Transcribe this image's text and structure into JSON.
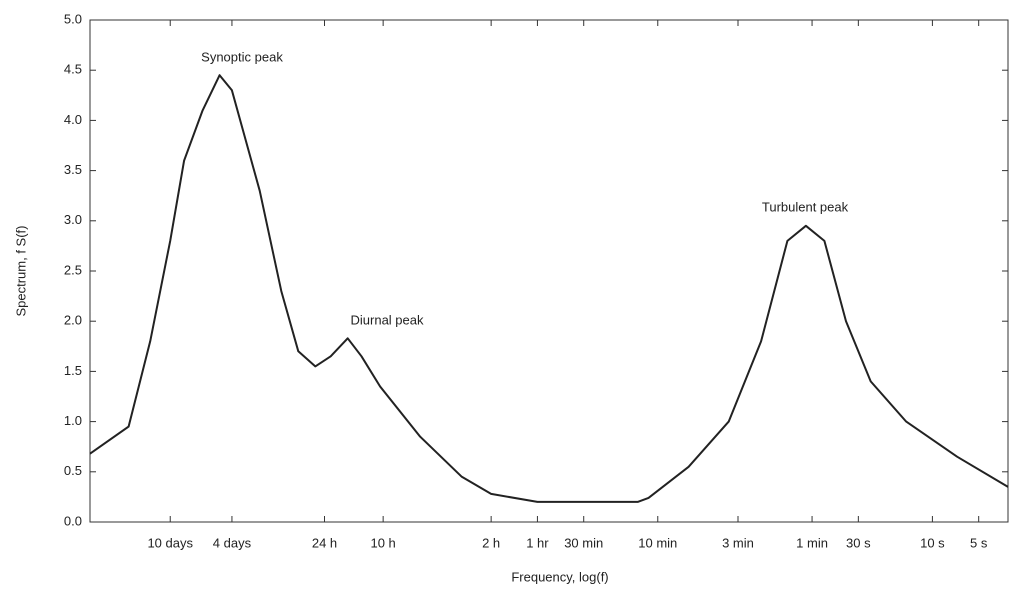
{
  "chart_data": {
    "type": "line",
    "x_label": "Frequency, log(f)",
    "y_label": "Spectrum, f S(f)",
    "annotations": [
      "Synoptic peak",
      "Diurnal peak",
      "Turbulent peak"
    ],
    "xlim": [
      -2.9,
      3.05
    ],
    "xticks": [
      {
        "value": -2.38,
        "label": "10 days"
      },
      {
        "value": -1.98,
        "label": "4 days"
      },
      {
        "value": -1.38,
        "label": "24 h"
      },
      {
        "value": -1.0,
        "label": "10 h"
      },
      {
        "value": -0.3,
        "label": "2 h"
      },
      {
        "value": 0,
        "label": "1 hr"
      },
      {
        "value": 0.3,
        "label": "30 min"
      },
      {
        "value": 0.78,
        "label": "10 min"
      },
      {
        "value": 1.3,
        "label": "3 min"
      },
      {
        "value": 1.78,
        "label": "1 min"
      },
      {
        "value": 2.08,
        "label": "30 s"
      },
      {
        "value": 2.56,
        "label": "10 s"
      },
      {
        "value": 2.86,
        "label": "5 s"
      }
    ],
    "ylim": [
      0,
      5
    ],
    "yticks": [
      {
        "value": 0,
        "label": "0.0"
      },
      {
        "value": 0.5,
        "label": "0.5"
      },
      {
        "value": 1,
        "label": "1.0"
      },
      {
        "value": 1.5,
        "label": "1.5"
      },
      {
        "value": 2,
        "label": "2.0"
      },
      {
        "value": 2.5,
        "label": "2.5"
      },
      {
        "value": 3,
        "label": "3.0"
      },
      {
        "value": 3.5,
        "label": "3.5"
      },
      {
        "value": 4,
        "label": "4.0"
      },
      {
        "value": 4.5,
        "label": "4.5"
      },
      {
        "value": 5,
        "label": "5.0"
      }
    ],
    "color": "#222222",
    "x": [
      -2.9,
      -2.65,
      -2.51,
      -2.38,
      -2.29,
      -2.17,
      -2.06,
      -1.98,
      -1.8,
      -1.66,
      -1.55,
      -1.44,
      -1.34,
      -1.23,
      -1.14,
      -1.02,
      -0.76,
      -0.49,
      -0.3,
      0,
      0.32,
      0.65,
      0.72,
      0.98,
      1.24,
      1.45,
      1.62,
      1.74,
      1.86,
      2.0,
      2.16,
      2.39,
      2.72,
      3.05
    ],
    "values": [
      0.68,
      0.95,
      1.8,
      2.8,
      3.6,
      4.1,
      4.45,
      4.3,
      3.3,
      2.3,
      1.7,
      1.55,
      1.65,
      1.83,
      1.65,
      1.35,
      0.85,
      0.45,
      0.28,
      0.2,
      0.2,
      0.2,
      0.24,
      0.55,
      1.0,
      1.8,
      2.8,
      2.95,
      2.8,
      2.0,
      1.4,
      1.0,
      0.65,
      0.35
    ]
  }
}
